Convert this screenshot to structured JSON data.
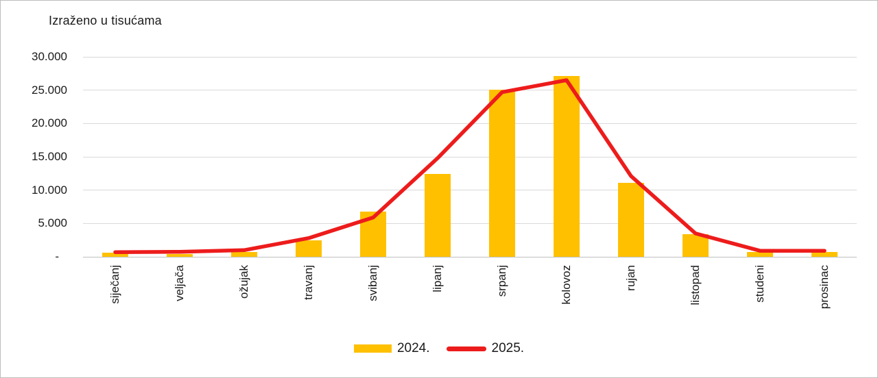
{
  "chart_data": {
    "type": "bar+line",
    "title": "Izraženo u tisućama",
    "categories": [
      "siječanj",
      "veljača",
      "ožujak",
      "travanj",
      "svibanj",
      "lipanj",
      "srpanj",
      "kolovoz",
      "rujan",
      "listopad",
      "studeni",
      "prosinac"
    ],
    "series": [
      {
        "name": "2024.",
        "type": "bar",
        "color": "#FFC000",
        "values": [
          600,
          400,
          700,
          2500,
          6800,
          12400,
          25100,
          27100,
          11100,
          3400,
          750,
          750
        ]
      },
      {
        "name": "2025.",
        "type": "line",
        "color": "#ED1C1C",
        "values": [
          700,
          750,
          1000,
          2800,
          5900,
          14800,
          24700,
          26500,
          12100,
          3500,
          900,
          900
        ]
      }
    ],
    "y_axis": {
      "min": 0,
      "max": 30000,
      "step": 5000,
      "tick_labels_top_down": [
        "30.000",
        "25.000",
        "20.000",
        "15.000",
        "10.000",
        "5.000",
        "-"
      ],
      "zero_label": "-"
    },
    "x_axis": {
      "label_rotation_deg": 90
    },
    "grid": true,
    "legend_position": "bottom",
    "gridline_color": "#d9d9d9",
    "axis_line_color": "#bfbfbf",
    "text_color": "#1a1a1a"
  }
}
